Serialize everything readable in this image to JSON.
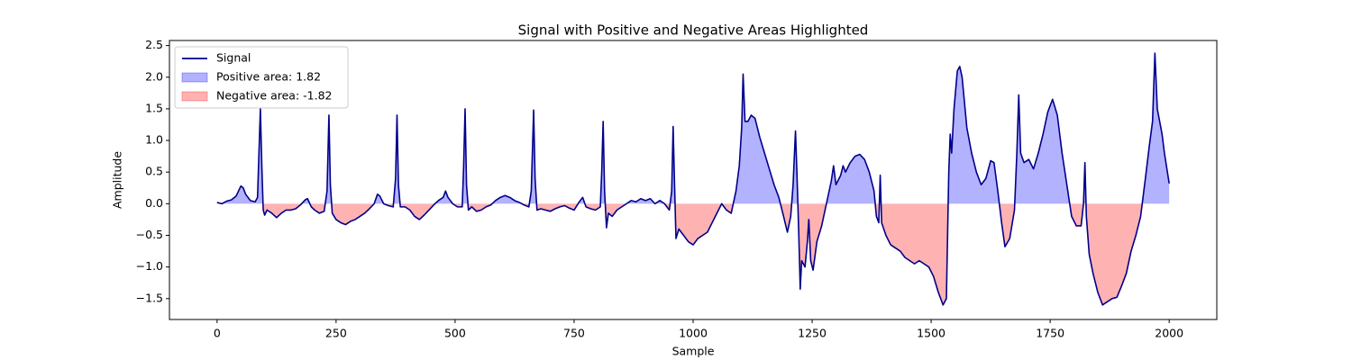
{
  "chart_data": {
    "type": "line",
    "title": "Signal with Positive and Negative Areas Highlighted",
    "xlabel": "Sample",
    "ylabel": "Amplitude",
    "xlim": [
      -100,
      2100
    ],
    "ylim": [
      -1.83,
      2.58
    ],
    "xticks": [
      0,
      250,
      500,
      750,
      1000,
      1250,
      1500,
      1750,
      2000
    ],
    "yticks": [
      {
        "value": -1.5,
        "label": "−1.5"
      },
      {
        "value": -1.0,
        "label": "−1.0"
      },
      {
        "value": -0.5,
        "label": "−0.5"
      },
      {
        "value": 0,
        "label": "0.0"
      },
      0.5,
      {
        "value": 1.0,
        "label": "1.0"
      },
      1.5,
      {
        "value": 2.0,
        "label": "2.0"
      },
      2.5
    ],
    "legend": "upper left",
    "series": [
      {
        "name": "Signal",
        "color": "#00008b",
        "x": [
          0,
          10,
          20,
          30,
          40,
          45,
          50,
          55,
          60,
          70,
          80,
          85,
          88,
          91,
          94,
          97,
          100,
          105,
          115,
          125,
          135,
          145,
          155,
          165,
          175,
          185,
          190,
          198,
          205,
          215,
          225,
          231,
          235,
          238,
          242,
          250,
          260,
          270,
          280,
          290,
          300,
          310,
          320,
          330,
          337,
          342,
          350,
          360,
          370,
          375,
          378,
          381,
          385,
          395,
          405,
          415,
          425,
          435,
          445,
          455,
          465,
          475,
          480,
          485,
          495,
          505,
          515,
          518,
          521,
          524,
          528,
          535,
          545,
          555,
          565,
          575,
          585,
          595,
          605,
          615,
          625,
          635,
          645,
          655,
          660,
          665,
          668,
          672,
          680,
          690,
          700,
          710,
          720,
          730,
          740,
          750,
          760,
          768,
          775,
          785,
          795,
          805,
          808,
          811,
          814,
          818,
          822,
          830,
          840,
          850,
          860,
          870,
          880,
          890,
          900,
          910,
          920,
          930,
          940,
          950,
          955,
          958,
          961,
          964,
          970,
          980,
          990,
          1000,
          1010,
          1020,
          1030,
          1040,
          1050,
          1060,
          1070,
          1080,
          1090,
          1097,
          1102,
          1105,
          1109,
          1115,
          1122,
          1130,
          1140,
          1150,
          1160,
          1170,
          1180,
          1190,
          1198,
          1205,
          1210,
          1215,
          1218,
          1222,
          1225,
          1228,
          1235,
          1240,
          1243,
          1247,
          1252,
          1260,
          1270,
          1280,
          1290,
          1295,
          1300,
          1310,
          1315,
          1320,
          1330,
          1340,
          1350,
          1360,
          1370,
          1380,
          1385,
          1390,
          1393,
          1396,
          1405,
          1415,
          1425,
          1435,
          1445,
          1455,
          1465,
          1475,
          1485,
          1495,
          1505,
          1515,
          1525,
          1532,
          1537,
          1540,
          1543,
          1548,
          1555,
          1560,
          1565,
          1575,
          1585,
          1595,
          1605,
          1615,
          1625,
          1632,
          1640,
          1648,
          1655,
          1665,
          1675,
          1680,
          1684,
          1688,
          1695,
          1705,
          1715,
          1725,
          1735,
          1745,
          1755,
          1765,
          1775,
          1785,
          1795,
          1805,
          1815,
          1820,
          1823,
          1826,
          1832,
          1840,
          1850,
          1860,
          1870,
          1880,
          1890,
          1900,
          1910,
          1920,
          1930,
          1940,
          1950,
          1958,
          1965,
          1970,
          1975,
          1985,
          1990,
          2000
        ],
        "values": [
          0.02,
          0.0,
          0.04,
          0.06,
          0.12,
          0.2,
          0.28,
          0.25,
          0.15,
          0.05,
          0.03,
          0.1,
          0.8,
          1.5,
          0.6,
          -0.1,
          -0.18,
          -0.1,
          -0.15,
          -0.22,
          -0.15,
          -0.1,
          -0.1,
          -0.08,
          -0.02,
          0.06,
          0.08,
          -0.05,
          -0.1,
          -0.15,
          -0.12,
          0.2,
          1.4,
          0.3,
          -0.15,
          -0.25,
          -0.3,
          -0.33,
          -0.28,
          -0.25,
          -0.2,
          -0.15,
          -0.08,
          0.0,
          0.15,
          0.12,
          0.0,
          -0.03,
          -0.05,
          0.4,
          1.4,
          0.3,
          -0.05,
          -0.05,
          -0.1,
          -0.2,
          -0.25,
          -0.18,
          -0.1,
          -0.02,
          0.05,
          0.1,
          0.2,
          0.1,
          0.0,
          -0.05,
          -0.05,
          0.6,
          1.5,
          0.3,
          -0.1,
          -0.05,
          -0.12,
          -0.1,
          -0.05,
          -0.02,
          0.05,
          0.1,
          0.13,
          0.1,
          0.05,
          0.02,
          -0.02,
          -0.05,
          0.2,
          1.48,
          0.4,
          -0.1,
          -0.08,
          -0.1,
          -0.12,
          -0.08,
          -0.05,
          -0.03,
          -0.07,
          -0.1,
          0.02,
          0.1,
          -0.05,
          -0.08,
          -0.1,
          -0.05,
          0.5,
          1.3,
          0.2,
          -0.38,
          -0.15,
          -0.2,
          -0.1,
          -0.05,
          0.0,
          0.05,
          0.03,
          0.08,
          0.05,
          0.08,
          0.0,
          0.05,
          0.0,
          -0.1,
          0.2,
          1.22,
          0.3,
          -0.55,
          -0.4,
          -0.5,
          -0.6,
          -0.65,
          -0.55,
          -0.5,
          -0.45,
          -0.3,
          -0.15,
          0.0,
          -0.1,
          -0.15,
          0.2,
          0.6,
          1.2,
          2.05,
          1.3,
          1.3,
          1.4,
          1.35,
          1.05,
          0.8,
          0.55,
          0.3,
          0.1,
          -0.2,
          -0.45,
          -0.2,
          0.3,
          1.15,
          0.5,
          -0.5,
          -1.35,
          -0.9,
          -1.0,
          -0.6,
          -0.25,
          -0.9,
          -1.05,
          -0.6,
          -0.35,
          0.0,
          0.35,
          0.6,
          0.3,
          0.45,
          0.6,
          0.5,
          0.65,
          0.75,
          0.78,
          0.7,
          0.5,
          0.2,
          -0.2,
          -0.3,
          0.45,
          -0.3,
          -0.5,
          -0.65,
          -0.7,
          -0.75,
          -0.85,
          -0.9,
          -0.95,
          -0.9,
          -0.95,
          -1.0,
          -1.15,
          -1.4,
          -1.6,
          -1.5,
          0.5,
          1.1,
          0.8,
          1.5,
          2.1,
          2.17,
          2.0,
          1.2,
          0.8,
          0.5,
          0.3,
          0.4,
          0.68,
          0.65,
          0.2,
          -0.3,
          -0.68,
          -0.55,
          -0.1,
          0.8,
          1.72,
          0.8,
          0.65,
          0.7,
          0.55,
          0.8,
          1.1,
          1.45,
          1.65,
          1.4,
          0.8,
          0.3,
          -0.2,
          -0.35,
          -0.35,
          0.0,
          0.65,
          -0.2,
          -0.8,
          -1.1,
          -1.4,
          -1.6,
          -1.55,
          -1.5,
          -1.48,
          -1.3,
          -1.1,
          -0.75,
          -0.5,
          -0.2,
          0.4,
          0.9,
          1.3,
          2.38,
          1.5,
          1.1,
          0.8,
          0.32
        ]
      }
    ],
    "positive_fill": {
      "name": "Positive area: 1.82",
      "color": "#0000ff",
      "alpha": 0.3
    },
    "negative_fill": {
      "name": "Negative area: -1.82",
      "color": "#ff0000",
      "alpha": 0.3
    }
  }
}
